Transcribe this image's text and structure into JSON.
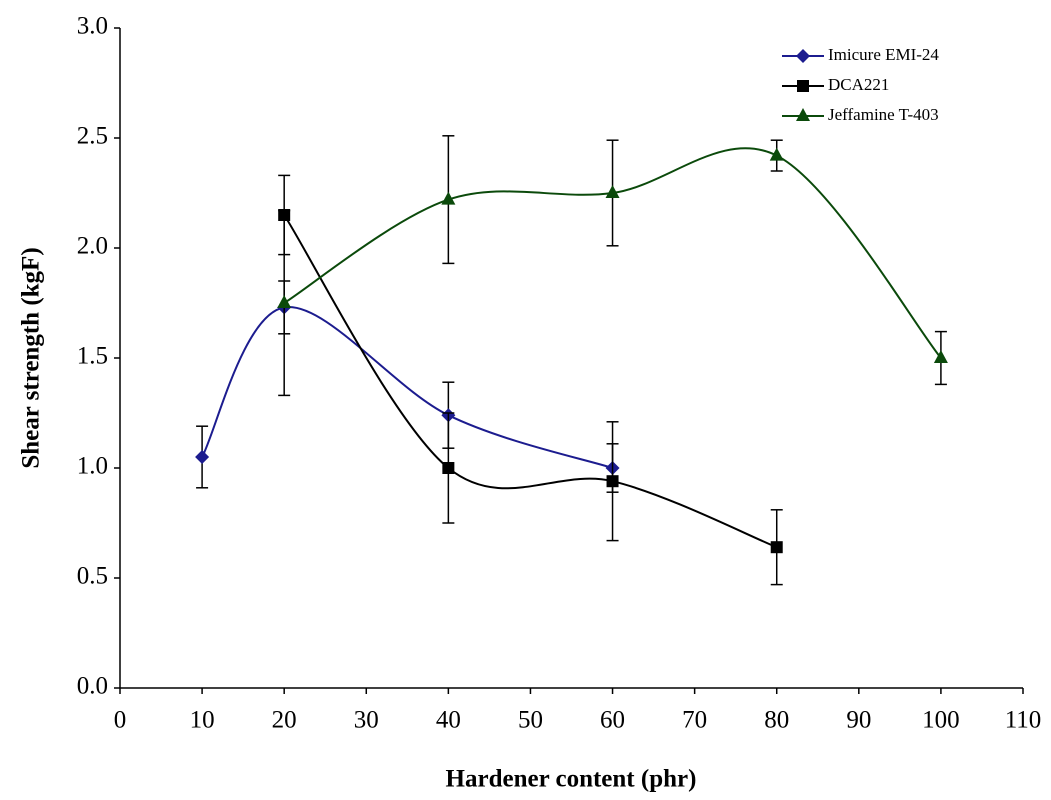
{
  "chart_data": {
    "type": "line",
    "x_label": "Hardener content (phr)",
    "y_label": "Shear strength (kgF)",
    "xlim": [
      0,
      110
    ],
    "xticks": [
      0,
      10,
      20,
      30,
      40,
      50,
      60,
      70,
      80,
      90,
      100,
      110
    ],
    "ylim": [
      0,
      3
    ],
    "yticks": [
      {
        "value": 0,
        "label": "0.0"
      },
      {
        "value": 0.5,
        "label": "0.5"
      },
      {
        "value": 1,
        "label": "1.0"
      },
      {
        "value": 1.5,
        "label": "1.5"
      },
      {
        "value": 2,
        "label": "2.0"
      },
      {
        "value": 2.5,
        "label": "2.5"
      },
      {
        "value": 3,
        "label": "3.0"
      }
    ],
    "smooth": true,
    "legend": "upper right",
    "series": [
      {
        "name": "Imicure EMI-24",
        "color": "#1c1c8f",
        "marker": "diamond",
        "x": [
          10,
          20,
          40,
          60
        ],
        "values": [
          1.05,
          1.73,
          1.24,
          1.0
        ],
        "errors": [
          0.14,
          0.12,
          0.15,
          0.11
        ]
      },
      {
        "name": "DCA221",
        "color": "#000000",
        "marker": "square",
        "x": [
          20,
          40,
          60,
          80
        ],
        "values": [
          2.15,
          1.0,
          0.94,
          0.64
        ],
        "errors": [
          0.18,
          0.25,
          0.27,
          0.17
        ]
      },
      {
        "name": "Jeffamine T-403",
        "color": "#0b4a0b",
        "marker": "triangle",
        "x": [
          20,
          40,
          60,
          80,
          100
        ],
        "values": [
          1.75,
          2.22,
          2.25,
          2.42,
          1.5
        ],
        "errors": [
          0.42,
          0.29,
          0.24,
          0.07,
          0.12
        ]
      }
    ]
  }
}
